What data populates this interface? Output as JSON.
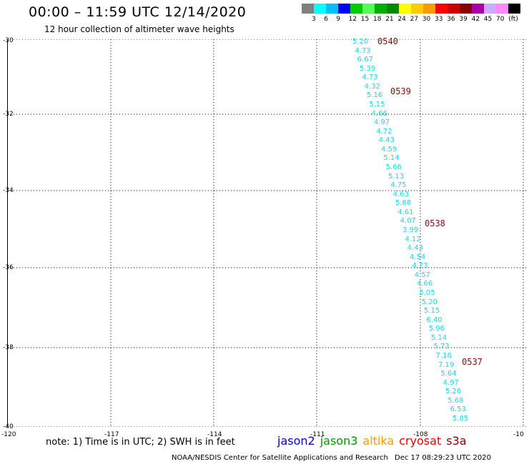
{
  "header": {
    "title": "00:00 – 11:59 UTC 12/14/2020",
    "subtitle": "12 hour collection of altimeter wave heights"
  },
  "legend": {
    "colors": [
      "#808080",
      "#00ffff",
      "#00bfff",
      "#0000ff",
      "#00cc00",
      "#55ff55",
      "#00b000",
      "#008800",
      "#ffff00",
      "#ffcc00",
      "#ff9900",
      "#ff0000",
      "#cc0000",
      "#880000",
      "#aa00aa",
      "#ccaaff",
      "#ff88ff",
      "#000000"
    ],
    "labels": [
      "3",
      "6",
      "9",
      "12",
      "15",
      "18",
      "21",
      "24",
      "27",
      "30",
      "33",
      "36",
      "39",
      "42",
      "45",
      "70",
      "(ft)"
    ]
  },
  "axes": {
    "y_ticks": [
      "-30",
      "-32",
      "-34",
      "-36",
      "-38",
      "-40"
    ],
    "x_ticks": [
      "-120",
      "-117",
      "-114",
      "-111",
      "-108",
      "-10"
    ]
  },
  "wave_heights": [
    "5.20",
    "4.73",
    "6.67",
    "5.39",
    "4.73",
    "4.32",
    "5.16",
    "5.15",
    "4.66",
    "4.97",
    "4.72",
    "4.43",
    "4.59",
    "5.14",
    "5.66",
    "5.13",
    "4.75",
    "4.63",
    "5.68",
    "4.61",
    "4.07",
    "3.99",
    "4.12",
    "4.43",
    "4.54",
    "4.73",
    "4.57",
    "4.66",
    "5.05",
    "5.20",
    "5.15",
    "6.40",
    "5.96",
    "5.14",
    "5.73",
    "7.16",
    "7.19",
    "5.64",
    "4.97",
    "5.26",
    "5.68",
    "6.53",
    "5.85"
  ],
  "pass_times": [
    "0540",
    "0539",
    "0538",
    "0537"
  ],
  "footer": {
    "note": "note: 1) Time is in UTC; 2) SWH is in feet",
    "satellites": [
      {
        "name": "jason2",
        "color": "#0000dd"
      },
      {
        "name": "jason3",
        "color": "#009900"
      },
      {
        "name": "altika",
        "color": "#ff9900"
      },
      {
        "name": "cryosat",
        "color": "#ee0000"
      },
      {
        "name": "s3a",
        "color": "#880000"
      }
    ],
    "credit": "NOAA/NESDIS Center for Satellite Applications and Research",
    "timestamp": "Dec 17 08:29:23 UTC 2020"
  }
}
